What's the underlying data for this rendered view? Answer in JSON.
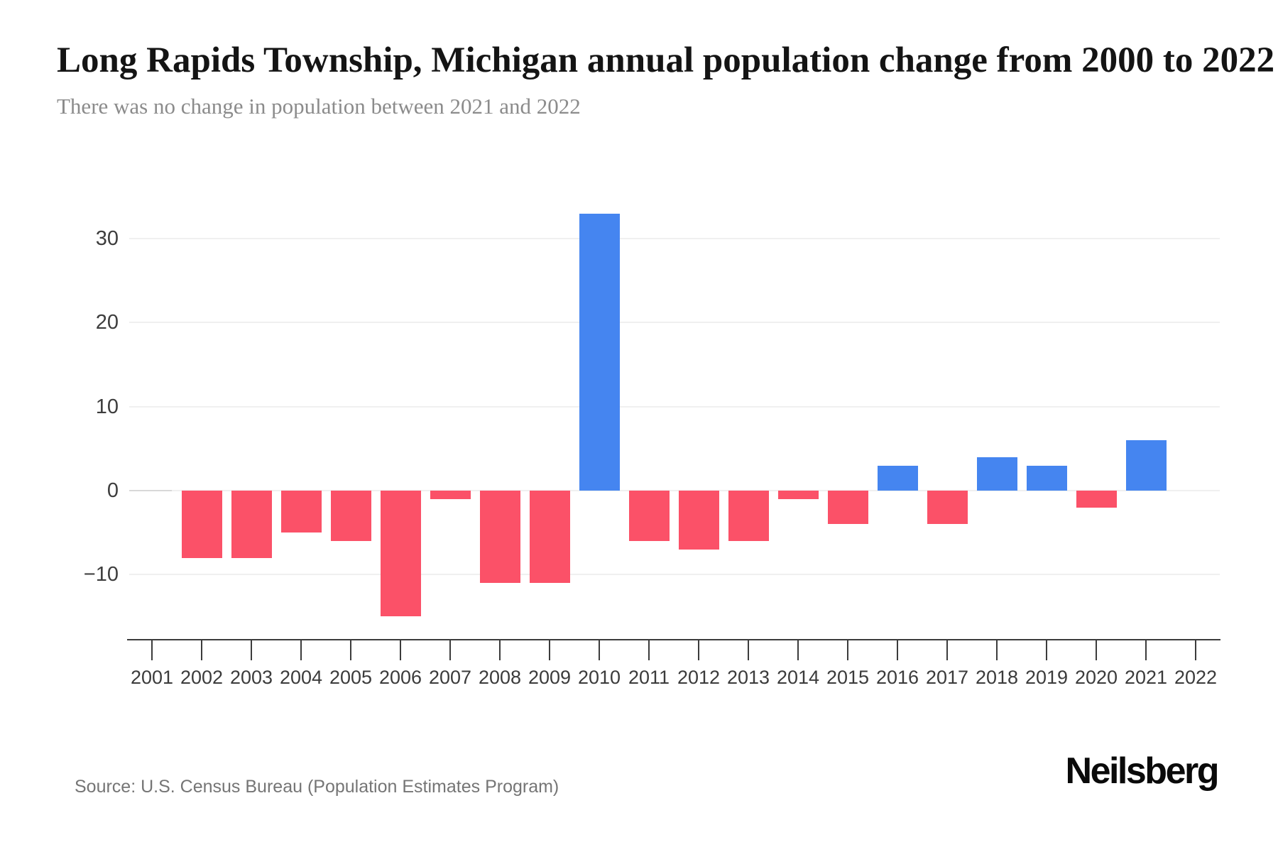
{
  "header": {
    "title": "Long Rapids Township, Michigan annual population change from 2000 to 2022",
    "subtitle": "There was no change in population between 2021 and 2022"
  },
  "footer": {
    "source": "Source: U.S. Census Bureau (Population Estimates Program)",
    "brand": "Neilsberg"
  },
  "chart_data": {
    "type": "bar",
    "title": "Long Rapids Township, Michigan annual population change from 2000 to 2022",
    "subtitle": "There was no change in population between 2021 and 2022",
    "categories": [
      "2001",
      "2002",
      "2003",
      "2004",
      "2005",
      "2006",
      "2007",
      "2008",
      "2009",
      "2010",
      "2011",
      "2012",
      "2013",
      "2014",
      "2015",
      "2016",
      "2017",
      "2018",
      "2019",
      "2020",
      "2021",
      "2022"
    ],
    "values": [
      0,
      -8,
      -8,
      -5,
      -6,
      -15,
      -1,
      -11,
      -11,
      33,
      -6,
      -7,
      -6,
      -1,
      -4,
      3,
      -4,
      4,
      3,
      -2,
      6,
      0
    ],
    "xlabel": "",
    "ylabel": "",
    "yticks": [
      30,
      20,
      10,
      0,
      -10
    ],
    "ylim": [
      -16,
      35
    ],
    "grid": true,
    "legend_position": "none",
    "colors": {
      "positive": "#4585f0",
      "negative": "#fb5168",
      "gridline": "#f0f0f0",
      "axis": "#3c3c3c",
      "title_text": "#141414",
      "subtitle_text": "#8b8b8b"
    }
  }
}
